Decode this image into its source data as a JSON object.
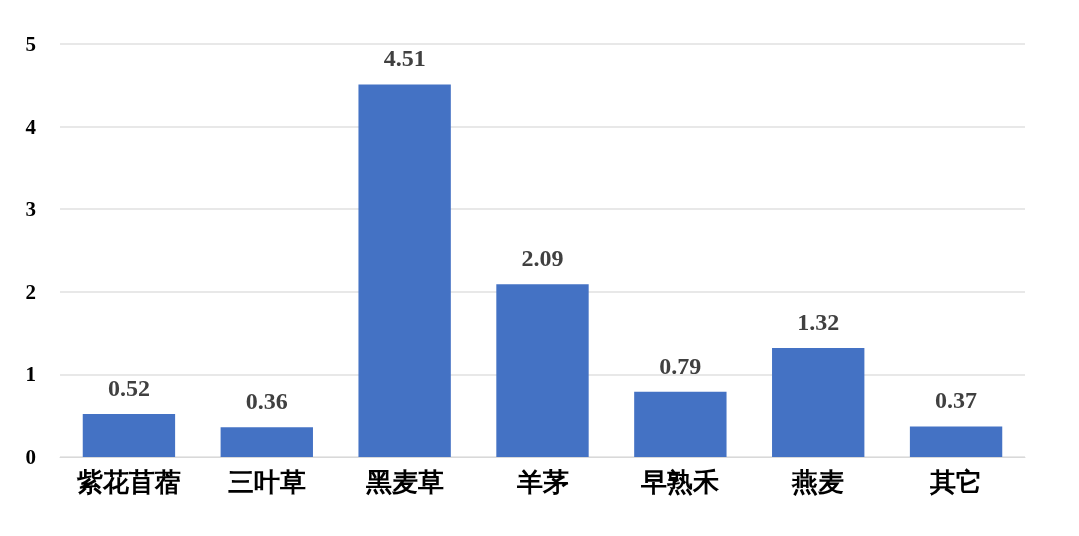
{
  "chart_data": {
    "type": "bar",
    "categories": [
      "紫花苜蓿",
      "三叶草",
      "黑麦草",
      "羊茅",
      "早熟禾",
      "燕麦",
      "其它"
    ],
    "values": [
      0.52,
      0.36,
      4.51,
      2.09,
      0.79,
      1.32,
      0.37
    ],
    "color": "#4472c4",
    "ylim": [
      0,
      5
    ],
    "yticks": [
      0,
      1,
      2,
      3,
      4,
      5
    ],
    "grid": "y",
    "data_labels": true
  }
}
